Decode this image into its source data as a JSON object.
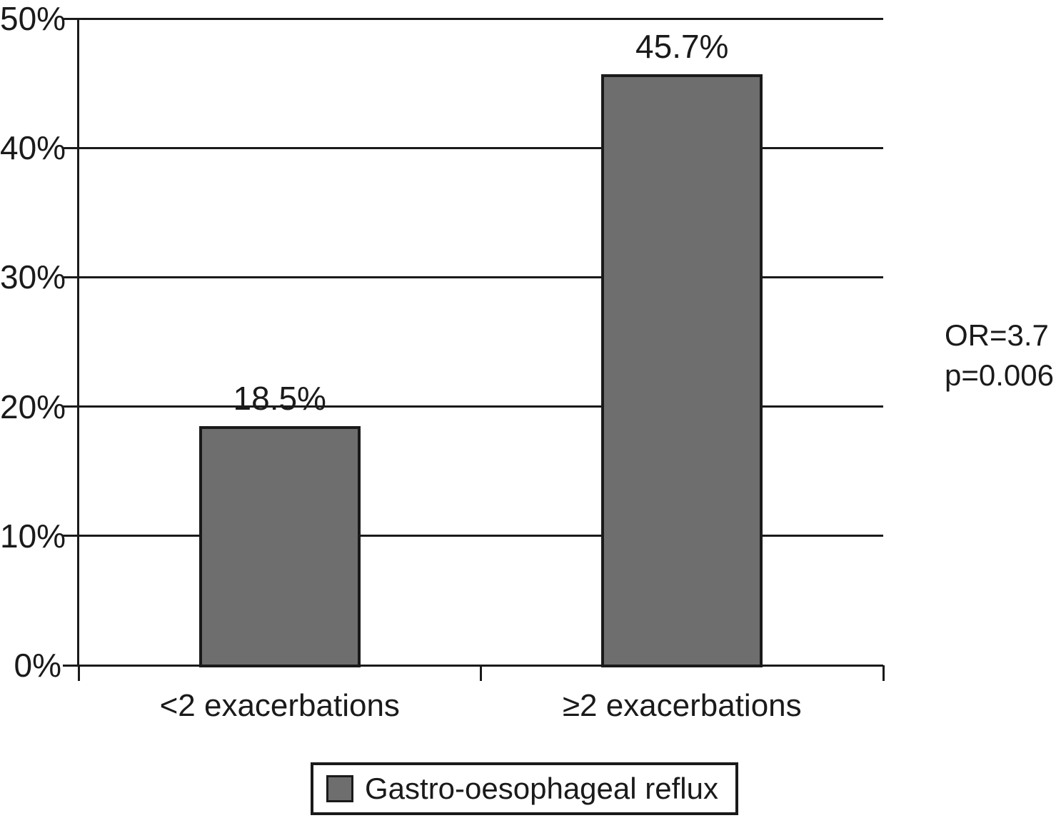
{
  "chart_data": {
    "type": "bar",
    "categories": [
      "<2 exacerbations",
      "≥2 exacerbations"
    ],
    "values": [
      18.5,
      45.7
    ],
    "value_labels": [
      "18.5%",
      "45.7%"
    ],
    "series_name": "Gastro-oesophageal reflux",
    "title": "",
    "xlabel": "",
    "ylabel": "",
    "ylim": [
      0,
      50
    ],
    "ytick_step": 10,
    "ytick_labels": [
      "0%",
      "10%",
      "20%",
      "30%",
      "40%",
      "50%"
    ],
    "grid": true,
    "legend_position": "bottom",
    "annotations": [
      {
        "text": "OR=3.7"
      },
      {
        "text": "p=0.006"
      }
    ],
    "colors": {
      "bar_fill": "#6e6e6e",
      "line": "#1a1a1a",
      "text": "#1a1a1a",
      "background": "#ffffff"
    }
  }
}
